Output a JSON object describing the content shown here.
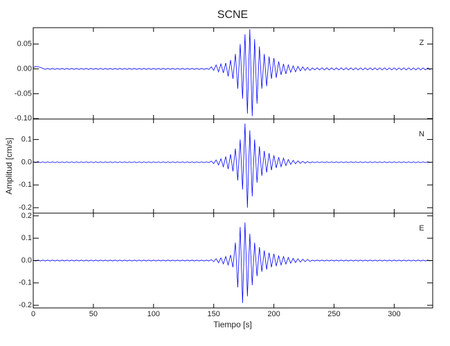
{
  "chart_data": {
    "type": "line",
    "title": "SCNE",
    "xlabel": "Tiempo [s]",
    "ylabel": "Amplitud [cm/s]",
    "xlim": [
      0,
      332
    ],
    "xticks": [
      0,
      50,
      100,
      150,
      200,
      250,
      300
    ],
    "x": [
      0,
      2,
      4,
      6,
      8,
      10,
      12,
      14,
      16,
      18,
      20,
      22,
      24,
      26,
      28,
      30,
      32,
      34,
      36,
      38,
      40,
      42,
      44,
      46,
      48,
      50,
      52,
      54,
      56,
      58,
      60,
      62,
      64,
      66,
      68,
      70,
      72,
      74,
      76,
      78,
      80,
      82,
      84,
      86,
      88,
      90,
      92,
      94,
      96,
      98,
      100,
      102,
      104,
      106,
      108,
      110,
      112,
      114,
      116,
      118,
      120,
      122,
      124,
      126,
      128,
      130,
      132,
      134,
      136,
      138,
      140,
      142,
      144,
      146,
      148,
      150,
      152,
      154,
      156,
      158,
      160,
      162,
      164,
      166,
      168,
      170,
      172,
      174,
      176,
      178,
      180,
      182,
      184,
      186,
      188,
      190,
      192,
      194,
      196,
      198,
      200,
      202,
      204,
      206,
      208,
      210,
      212,
      214,
      216,
      218,
      220,
      222,
      224,
      226,
      228,
      230,
      232,
      234,
      236,
      238,
      240,
      242,
      244,
      246,
      248,
      250,
      252,
      254,
      256,
      258,
      260,
      262,
      264,
      266,
      268,
      270,
      272,
      274,
      276,
      278,
      280,
      282,
      284,
      286,
      288,
      290,
      292,
      294,
      296,
      298,
      300,
      302,
      304,
      306,
      308,
      310,
      312,
      314,
      316,
      318,
      320,
      322,
      324,
      326,
      328,
      330
    ],
    "series": [
      {
        "name": "Z",
        "color": "#0000ff",
        "ylim": [
          -0.101,
          0.083
        ],
        "yticks": [
          0.05,
          {
            "value": 0,
            "label": "0.00"
          },
          -0.05,
          {
            "value": -0.1,
            "label": "-0.10"
          }
        ],
        "values": [
          0.002,
          0.005,
          0.004,
          0.003,
          0.001,
          -0.001,
          0.001,
          -0.001,
          0.001,
          -0.001,
          0.001,
          -0.001,
          0.001,
          -0.001,
          0.001,
          -0.001,
          0.001,
          -0.001,
          0.001,
          -0.001,
          0.001,
          -0.001,
          0.001,
          -0.001,
          0.001,
          -0.001,
          0.001,
          -0.001,
          0.001,
          -0.001,
          0.001,
          -0.001,
          0.001,
          -0.001,
          0.001,
          -0.001,
          0.001,
          -0.001,
          0.001,
          -0.001,
          0.001,
          -0.001,
          0.001,
          -0.001,
          0.001,
          -0.001,
          0.001,
          -0.001,
          0.001,
          -0.001,
          0.001,
          -0.001,
          0.001,
          -0.001,
          0.001,
          -0.001,
          0.001,
          -0.001,
          0.001,
          -0.001,
          0.001,
          -0.001,
          0.001,
          -0.001,
          0.001,
          -0.001,
          0.001,
          -0.001,
          0.001,
          -0.001,
          0.001,
          -0.001,
          0.001,
          -0.001,
          0.004,
          -0.003,
          0.008,
          -0.006,
          0.01,
          -0.008,
          0.012,
          -0.015,
          0.018,
          -0.02,
          0.03,
          -0.04,
          0.05,
          -0.06,
          0.07,
          -0.09,
          0.08,
          -0.095,
          0.06,
          -0.07,
          0.045,
          -0.04,
          0.03,
          -0.035,
          0.025,
          -0.02,
          0.022,
          -0.018,
          0.015,
          -0.012,
          0.01,
          -0.01,
          0.008,
          -0.007,
          0.006,
          -0.006,
          0.005,
          -0.004,
          0.004,
          -0.003,
          0.003,
          -0.003,
          0.002,
          -0.002,
          0.002,
          -0.002,
          0.002,
          -0.002,
          0.002,
          -0.002,
          0.002,
          -0.002,
          0.002,
          -0.002,
          0.002,
          -0.002,
          0.002,
          -0.002,
          0.002,
          -0.002,
          0.002,
          -0.002,
          0.002,
          -0.002,
          0.002,
          -0.002,
          0.002,
          -0.002,
          0.002,
          -0.002,
          0.002,
          -0.002,
          0.002,
          -0.002,
          0.002,
          -0.002,
          0.002,
          -0.002,
          0.002,
          -0.002,
          0.002,
          -0.002,
          0.002,
          -0.002,
          0.002,
          -0.002,
          0.002,
          -0.002,
          0.002,
          -0.002,
          0.002,
          -0.002
        ]
      },
      {
        "name": "N",
        "color": "#0000ff",
        "ylim": [
          -0.224,
          0.19
        ],
        "yticks": [
          0.1,
          {
            "value": 0,
            "label": "0.0"
          },
          -0.1,
          -0.2
        ],
        "values": [
          0.003,
          -0.002,
          0.003,
          -0.002,
          0.002,
          -0.002,
          0.002,
          -0.002,
          0.002,
          -0.002,
          0.002,
          -0.002,
          0.002,
          -0.002,
          0.002,
          -0.002,
          0.002,
          -0.002,
          0.002,
          -0.002,
          0.002,
          -0.002,
          0.002,
          -0.002,
          0.002,
          -0.002,
          0.002,
          -0.002,
          0.002,
          -0.002,
          0.002,
          -0.002,
          0.002,
          -0.002,
          0.002,
          -0.002,
          0.002,
          -0.002,
          0.002,
          -0.002,
          0.002,
          -0.002,
          0.002,
          -0.002,
          0.002,
          -0.002,
          0.002,
          -0.002,
          0.002,
          -0.002,
          0.002,
          -0.002,
          0.002,
          -0.002,
          0.002,
          -0.002,
          0.002,
          -0.002,
          0.002,
          -0.002,
          0.002,
          -0.002,
          0.002,
          -0.002,
          0.002,
          -0.002,
          0.002,
          -0.002,
          0.002,
          -0.002,
          0.002,
          -0.002,
          0.002,
          -0.002,
          0.005,
          -0.006,
          0.01,
          -0.012,
          0.015,
          -0.02,
          0.025,
          -0.03,
          0.035,
          -0.04,
          0.06,
          -0.08,
          0.1,
          -0.12,
          0.17,
          -0.2,
          0.14,
          -0.15,
          0.1,
          -0.09,
          0.07,
          -0.06,
          0.05,
          -0.045,
          0.04,
          -0.035,
          0.03,
          -0.025,
          0.022,
          -0.02,
          0.018,
          -0.015,
          0.012,
          -0.01,
          0.008,
          -0.007,
          0.006,
          -0.005,
          0.004,
          -0.004,
          0.003,
          -0.003,
          0.002,
          -0.002,
          0.002,
          -0.002,
          0.002,
          -0.002,
          0.002,
          -0.002,
          0.002,
          -0.002,
          0.002,
          -0.002,
          0.002,
          -0.002,
          0.002,
          -0.002,
          0.002,
          -0.002,
          0.002,
          -0.002,
          0.002,
          -0.002,
          0.002,
          -0.002,
          0.002,
          -0.002,
          0.002,
          -0.002,
          0.002,
          -0.002,
          0.002,
          -0.002,
          0.002,
          -0.002,
          0.002,
          -0.002,
          0.002,
          -0.002,
          0.002,
          -0.002,
          0.002,
          -0.002,
          0.002,
          -0.002,
          0.002,
          -0.002,
          0.002,
          -0.002,
          0.002,
          -0.002
        ]
      },
      {
        "name": "E",
        "color": "#0000ff",
        "ylim": [
          -0.212,
          0.212
        ],
        "yticks": [
          0.2,
          0.1,
          {
            "value": 0,
            "label": "0.0"
          },
          -0.1,
          -0.2
        ],
        "values": [
          0.002,
          -0.002,
          0.002,
          -0.002,
          0.002,
          -0.002,
          0.002,
          -0.002,
          0.002,
          -0.002,
          0.002,
          -0.002,
          0.002,
          -0.002,
          0.002,
          -0.002,
          0.002,
          -0.002,
          0.002,
          -0.002,
          0.002,
          -0.002,
          0.002,
          -0.002,
          0.002,
          -0.002,
          0.002,
          -0.002,
          0.002,
          -0.002,
          0.002,
          -0.002,
          0.002,
          -0.002,
          0.002,
          -0.002,
          0.002,
          -0.002,
          0.002,
          -0.002,
          0.002,
          -0.002,
          0.002,
          -0.002,
          0.002,
          -0.002,
          0.002,
          -0.002,
          0.002,
          -0.002,
          0.002,
          -0.002,
          0.002,
          -0.002,
          0.002,
          -0.002,
          0.002,
          -0.002,
          0.002,
          -0.002,
          0.002,
          -0.002,
          0.002,
          -0.002,
          0.002,
          -0.002,
          0.002,
          -0.002,
          0.002,
          -0.002,
          0.002,
          -0.002,
          0.002,
          -0.002,
          0.004,
          -0.005,
          0.008,
          -0.01,
          0.012,
          -0.015,
          0.018,
          -0.02,
          0.025,
          -0.03,
          0.08,
          -0.12,
          0.15,
          -0.19,
          0.17,
          -0.16,
          0.12,
          -0.11,
          0.08,
          -0.07,
          0.06,
          -0.05,
          0.045,
          -0.04,
          0.035,
          -0.03,
          0.03,
          -0.025,
          0.022,
          -0.02,
          0.018,
          -0.016,
          0.014,
          -0.012,
          0.01,
          -0.009,
          0.008,
          -0.007,
          0.006,
          -0.005,
          0.005,
          -0.004,
          0.002,
          -0.002,
          0.002,
          -0.002,
          0.002,
          -0.002,
          0.002,
          -0.002,
          0.002,
          -0.002,
          0.002,
          -0.002,
          0.002,
          -0.002,
          0.002,
          -0.002,
          0.002,
          -0.002,
          0.002,
          -0.002,
          0.002,
          -0.002,
          0.002,
          -0.002,
          0.002,
          -0.002,
          0.002,
          -0.002,
          0.002,
          -0.002,
          0.002,
          -0.002,
          0.002,
          -0.002,
          0.002,
          -0.002,
          0.002,
          -0.002,
          0.002,
          -0.002,
          0.002,
          -0.002,
          0.002,
          -0.002,
          0.002,
          -0.002,
          0.002,
          -0.002,
          0.002,
          -0.002
        ]
      }
    ]
  }
}
